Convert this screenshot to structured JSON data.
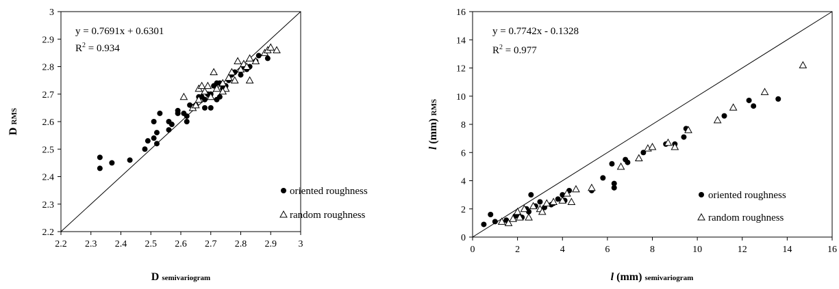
{
  "charts": [
    {
      "equation": "y = 0.7691x + 0.6301",
      "r2_label": "R",
      "r2_sup": "2",
      "r2_value": " = 0.934",
      "xlabel_main": "D ",
      "xlabel_sub": "semivariogram",
      "ylabel_main": "D ",
      "ylabel_sub": "RMS",
      "legend_oriented": "oriented roughness",
      "legend_random": "random roughness"
    },
    {
      "equation": "y = 0.7742x - 0.1328",
      "r2_label": "R",
      "r2_sup": "2",
      "r2_value": " = 0.977",
      "xlabel_main": "l",
      "xlabel_mid": "  (mm) ",
      "xlabel_sub": "semivariogram",
      "ylabel_main": "l",
      "ylabel_mid": " (mm) ",
      "ylabel_sub": "RMS",
      "legend_oriented": "oriented roughness",
      "legend_random": "random roughness"
    }
  ],
  "chart_data": [
    {
      "type": "scatter",
      "xlim": [
        2.2,
        3.0
      ],
      "ylim": [
        2.2,
        3.0
      ],
      "xticks": [
        "2.2",
        "2.3",
        "2.4",
        "2.5",
        "2.6",
        "2.7",
        "2.8",
        "2.9",
        "3"
      ],
      "yticks": [
        "2.2",
        "2.3",
        "2.4",
        "2.5",
        "2.6",
        "2.7",
        "2.8",
        "2.9",
        "3"
      ],
      "grid": false,
      "legend_position": "bottom-right",
      "reference_line": "1:1",
      "series": [
        {
          "name": "oriented roughness",
          "marker": "filled-circle",
          "points": [
            [
              2.33,
              2.47
            ],
            [
              2.33,
              2.43
            ],
            [
              2.37,
              2.45
            ],
            [
              2.43,
              2.46
            ],
            [
              2.48,
              2.5
            ],
            [
              2.49,
              2.53
            ],
            [
              2.51,
              2.54
            ],
            [
              2.51,
              2.6
            ],
            [
              2.52,
              2.52
            ],
            [
              2.52,
              2.56
            ],
            [
              2.53,
              2.63
            ],
            [
              2.56,
              2.57
            ],
            [
              2.56,
              2.6
            ],
            [
              2.57,
              2.59
            ],
            [
              2.59,
              2.63
            ],
            [
              2.59,
              2.64
            ],
            [
              2.61,
              2.63
            ],
            [
              2.62,
              2.6
            ],
            [
              2.62,
              2.62
            ],
            [
              2.63,
              2.66
            ],
            [
              2.65,
              2.66
            ],
            [
              2.66,
              2.69
            ],
            [
              2.67,
              2.69
            ],
            [
              2.68,
              2.65
            ],
            [
              2.68,
              2.68
            ],
            [
              2.69,
              2.7
            ],
            [
              2.7,
              2.65
            ],
            [
              2.7,
              2.7
            ],
            [
              2.71,
              2.73
            ],
            [
              2.72,
              2.68
            ],
            [
              2.73,
              2.69
            ],
            [
              2.73,
              2.74
            ],
            [
              2.74,
              2.72
            ],
            [
              2.75,
              2.73
            ],
            [
              2.76,
              2.75
            ],
            [
              2.77,
              2.77
            ],
            [
              2.78,
              2.78
            ],
            [
              2.8,
              2.77
            ],
            [
              2.81,
              2.8
            ],
            [
              2.82,
              2.79
            ],
            [
              2.83,
              2.8
            ],
            [
              2.85,
              2.82
            ],
            [
              2.86,
              2.84
            ],
            [
              2.89,
              2.83
            ],
            [
              2.74,
              2.73
            ],
            [
              2.72,
              2.74
            ]
          ]
        },
        {
          "name": "random roughness",
          "marker": "open-triangle",
          "points": [
            [
              2.61,
              2.69
            ],
            [
              2.64,
              2.65
            ],
            [
              2.65,
              2.66
            ],
            [
              2.66,
              2.72
            ],
            [
              2.67,
              2.73
            ],
            [
              2.68,
              2.71
            ],
            [
              2.69,
              2.73
            ],
            [
              2.7,
              2.69
            ],
            [
              2.71,
              2.78
            ],
            [
              2.72,
              2.72
            ],
            [
              2.74,
              2.74
            ],
            [
              2.75,
              2.72
            ],
            [
              2.76,
              2.76
            ],
            [
              2.77,
              2.78
            ],
            [
              2.78,
              2.75
            ],
            [
              2.79,
              2.82
            ],
            [
              2.8,
              2.79
            ],
            [
              2.81,
              2.81
            ],
            [
              2.82,
              2.8
            ],
            [
              2.83,
              2.83
            ],
            [
              2.83,
              2.75
            ],
            [
              2.85,
              2.82
            ],
            [
              2.88,
              2.85
            ],
            [
              2.89,
              2.86
            ],
            [
              2.9,
              2.87
            ],
            [
              2.92,
              2.86
            ],
            [
              2.66,
              2.68
            ],
            [
              2.74,
              2.71
            ]
          ]
        }
      ]
    },
    {
      "type": "scatter",
      "xlim": [
        0,
        16
      ],
      "ylim": [
        0,
        16
      ],
      "xticks": [
        "0",
        "2",
        "4",
        "6",
        "8",
        "10",
        "12",
        "14",
        "16"
      ],
      "yticks": [
        "0",
        "2",
        "4",
        "6",
        "8",
        "10",
        "12",
        "14",
        "16"
      ],
      "grid": false,
      "legend_position": "bottom-right",
      "reference_line": "1:1",
      "series": [
        {
          "name": "oriented roughness",
          "marker": "filled-circle",
          "points": [
            [
              0.5,
              0.9
            ],
            [
              0.8,
              1.6
            ],
            [
              1.0,
              1.1
            ],
            [
              1.5,
              1.2
            ],
            [
              2.0,
              1.6
            ],
            [
              2.2,
              1.4
            ],
            [
              2.5,
              1.8
            ],
            [
              2.6,
              3.0
            ],
            [
              2.8,
              2.2
            ],
            [
              3.0,
              2.5
            ],
            [
              3.2,
              2.1
            ],
            [
              3.5,
              2.3
            ],
            [
              3.8,
              2.7
            ],
            [
              4.0,
              3.0
            ],
            [
              4.3,
              3.3
            ],
            [
              4.1,
              2.6
            ],
            [
              5.3,
              3.3
            ],
            [
              5.8,
              4.2
            ],
            [
              6.2,
              5.2
            ],
            [
              6.3,
              3.5
            ],
            [
              6.3,
              3.8
            ],
            [
              6.8,
              5.5
            ],
            [
              6.9,
              5.3
            ],
            [
              7.6,
              6.0
            ],
            [
              8.6,
              6.6
            ],
            [
              9.0,
              6.6
            ],
            [
              9.4,
              7.1
            ],
            [
              9.5,
              7.7
            ],
            [
              11.2,
              8.6
            ],
            [
              12.3,
              9.7
            ],
            [
              12.5,
              9.3
            ],
            [
              13.6,
              9.8
            ],
            [
              2.4,
              2.0
            ],
            [
              3.6,
              2.4
            ],
            [
              1.9,
              1.5
            ]
          ]
        },
        {
          "name": "random roughness",
          "marker": "open-triangle",
          "points": [
            [
              1.3,
              1.1
            ],
            [
              1.6,
              1.0
            ],
            [
              1.8,
              1.3
            ],
            [
              2.0,
              1.8
            ],
            [
              2.3,
              2.0
            ],
            [
              2.5,
              1.4
            ],
            [
              2.7,
              2.2
            ],
            [
              3.0,
              2.0
            ],
            [
              3.3,
              2.4
            ],
            [
              3.6,
              2.5
            ],
            [
              4.0,
              2.6
            ],
            [
              4.2,
              3.1
            ],
            [
              4.4,
              2.5
            ],
            [
              4.6,
              3.4
            ],
            [
              5.3,
              3.5
            ],
            [
              6.6,
              5.0
            ],
            [
              7.4,
              5.6
            ],
            [
              7.8,
              6.3
            ],
            [
              8.0,
              6.4
            ],
            [
              8.7,
              6.7
            ],
            [
              9.0,
              6.4
            ],
            [
              9.6,
              7.6
            ],
            [
              10.9,
              8.3
            ],
            [
              11.6,
              9.2
            ],
            [
              13.0,
              10.3
            ],
            [
              14.7,
              12.2
            ],
            [
              2.1,
              1.4
            ],
            [
              3.1,
              1.8
            ]
          ]
        }
      ]
    }
  ]
}
